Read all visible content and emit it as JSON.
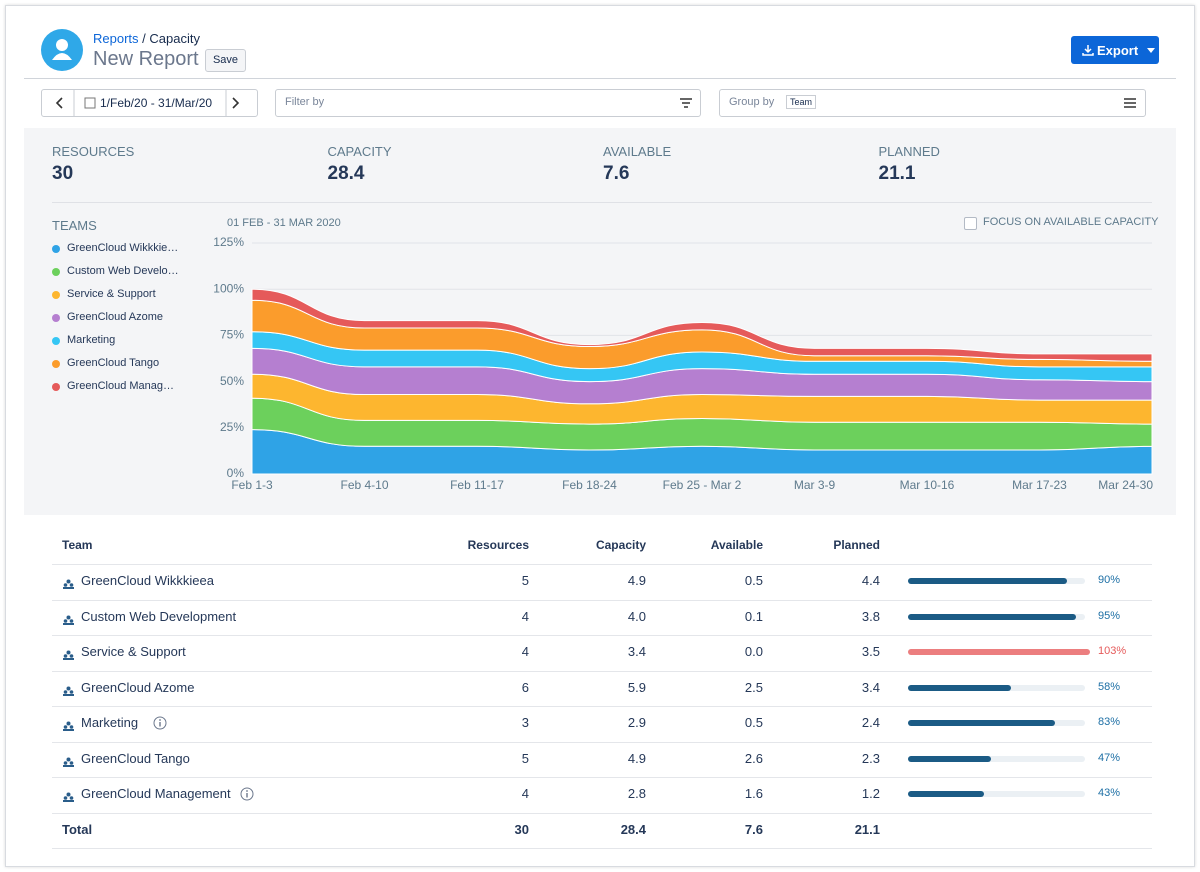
{
  "header": {
    "breadcrumb": [
      "Reports",
      "Capacity"
    ],
    "separator": "/",
    "title": "New Report",
    "save": "Save",
    "export": "Export"
  },
  "toolbar": {
    "date_range": "1/Feb/20 - 31/Mar/20",
    "filter_placeholder": "Filter by",
    "group_by_label": "Group by",
    "group_by_value": "Team"
  },
  "summary": [
    {
      "label": "RESOURCES",
      "value": 30
    },
    {
      "label": "CAPACITY",
      "value": 28.4
    },
    {
      "label": "AVAILABLE",
      "value": 7.6
    },
    {
      "label": "PLANNED",
      "value": 21.1
    }
  ],
  "legend_title": "TEAMS",
  "focus_checkbox": "FOCUS ON AVAILABLE CAPACITY",
  "chart_data": {
    "type": "stacked-area",
    "subtitle": "01 FEB - 31 MAR 2020",
    "categories": [
      "Feb 1-3",
      "Feb 4-10",
      "Feb 11-17",
      "Feb 18-24",
      "Feb 25 - Mar 2",
      "Mar 3-9",
      "Mar 10-16",
      "Mar 17-23",
      "Mar 24-30"
    ],
    "ylim": [
      0,
      125
    ],
    "yticks": [
      {
        "value": 0,
        "label": "0%"
      },
      {
        "value": 25,
        "label": "25%"
      },
      {
        "value": 50,
        "label": "50%"
      },
      {
        "value": 75,
        "label": "75%"
      },
      {
        "value": 100,
        "label": "100%"
      },
      {
        "value": 125,
        "label": "125%"
      }
    ],
    "grid": true,
    "series": [
      {
        "name": "GreenCloud Wikkkieea",
        "color": "#2fa3e6",
        "values": [
          24,
          15,
          15,
          13,
          15,
          13,
          13,
          13,
          15
        ]
      },
      {
        "name": "Custom Web Development",
        "color": "#6cd05c",
        "values": [
          17,
          14,
          14,
          14,
          15,
          15,
          15,
          15,
          12
        ]
      },
      {
        "name": "Service & Support",
        "color": "#fdb62f",
        "values": [
          13,
          14,
          14,
          11,
          13,
          14,
          14,
          12,
          13
        ]
      },
      {
        "name": "GreenCloud Azome",
        "color": "#b57fd0",
        "values": [
          14,
          15,
          15,
          12,
          14,
          12,
          12,
          11,
          10
        ]
      },
      {
        "name": "Marketing",
        "color": "#35c6f4",
        "values": [
          9,
          9,
          9,
          7,
          9,
          7,
          7,
          7,
          8
        ]
      },
      {
        "name": "GreenCloud Tango",
        "color": "#fb9c2c",
        "values": [
          17,
          12,
          12,
          12,
          12,
          3,
          3,
          4,
          3
        ]
      },
      {
        "name": "GreenCloud Management",
        "color": "#e55a5a",
        "values": [
          6,
          4,
          4,
          1,
          4,
          4,
          4,
          3,
          4
        ]
      }
    ]
  },
  "table": {
    "headers": [
      "Team",
      "Resources",
      "Capacity",
      "Available",
      "Planned"
    ],
    "rows": [
      {
        "cells": [
          "GreenCloud Wikkkieea",
          "5",
          "4.9",
          "0.5",
          "4.4"
        ],
        "pct": 90,
        "pct_label": "90%",
        "info": false
      },
      {
        "cells": [
          "Custom Web Development",
          "4",
          "4.0",
          "0.1",
          "3.8"
        ],
        "pct": 95,
        "pct_label": "95%",
        "info": false
      },
      {
        "cells": [
          "Service & Support",
          "4",
          "3.4",
          "0.0",
          "3.5"
        ],
        "pct": 103,
        "pct_label": "103%",
        "info": false
      },
      {
        "cells": [
          "GreenCloud Azome",
          "6",
          "5.9",
          "2.5",
          "3.4"
        ],
        "pct": 58,
        "pct_label": "58%",
        "info": false
      },
      {
        "cells": [
          "Marketing",
          "3",
          "2.9",
          "0.5",
          "2.4"
        ],
        "pct": 83,
        "pct_label": "83%",
        "info": true
      },
      {
        "cells": [
          "GreenCloud Tango",
          "5",
          "4.9",
          "2.6",
          "2.3"
        ],
        "pct": 47,
        "pct_label": "47%",
        "info": false
      },
      {
        "cells": [
          "GreenCloud Management",
          "4",
          "2.8",
          "1.6",
          "1.2"
        ],
        "pct": 43,
        "pct_label": "43%",
        "info": true
      }
    ],
    "total": {
      "cells": [
        "Total",
        "30",
        "28.4",
        "7.6",
        "21.1"
      ]
    }
  }
}
